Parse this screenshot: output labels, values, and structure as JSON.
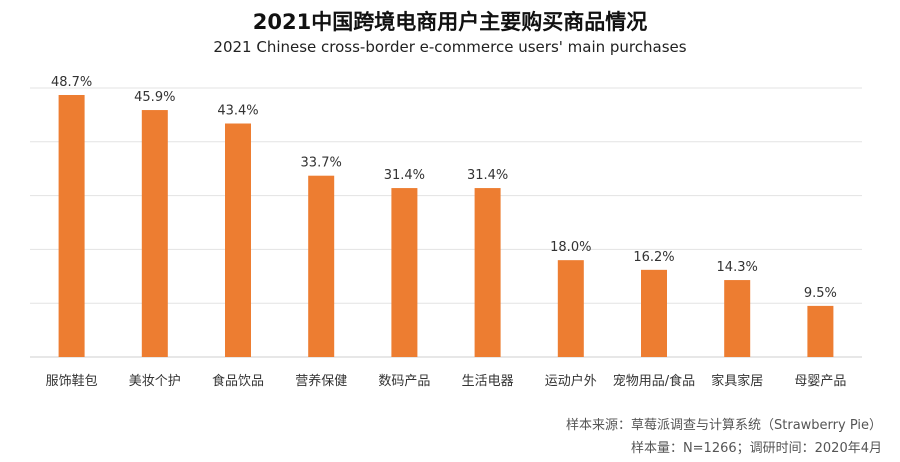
{
  "chart_data": {
    "type": "bar",
    "title": "2021中国跨境电商用户主要购买商品情况",
    "subtitle": "2021 Chinese cross-border e-commerce users' main purchases",
    "categories": [
      "服饰鞋包",
      "美妆个护",
      "食品饮品",
      "营养保健",
      "数码产品",
      "生活电器",
      "运动户外",
      "宠物用品/食品",
      "家具家居",
      "母婴产品"
    ],
    "values": [
      48.7,
      45.9,
      43.4,
      33.7,
      31.4,
      31.4,
      18.0,
      16.2,
      14.3,
      9.5
    ],
    "data_labels": [
      "48.7%",
      "45.9%",
      "43.4%",
      "33.7%",
      "31.4%",
      "31.4%",
      "18.0%",
      "16.2%",
      "14.3%",
      "9.5%"
    ],
    "ylim": [
      0,
      50
    ],
    "grid": true,
    "bar_color": "#ED7D31"
  },
  "footer": {
    "source": "样本来源：草莓派调查与计算系统（Strawberry Pie）",
    "sample": "样本量：N=1266；调研时间：2020年4月"
  }
}
